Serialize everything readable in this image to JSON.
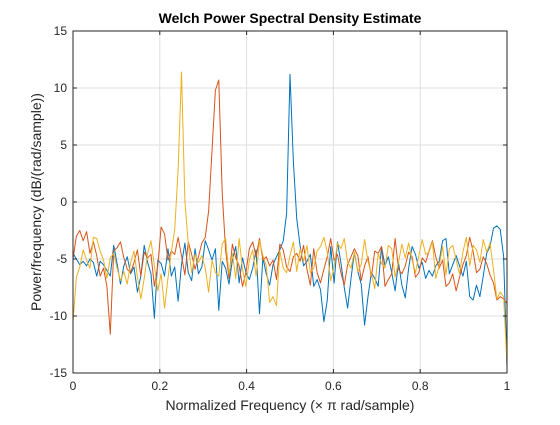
{
  "chart_data": {
    "type": "line",
    "title": "Welch Power Spectral Density Estimate",
    "xlabel": "Normalized  Frequency    (× π  rad/sample)",
    "ylabel": "Power/frequency (dB/(rad/sample))",
    "xlim": [
      0,
      1
    ],
    "ylim": [
      -15,
      15
    ],
    "xticks": [
      0,
      0.2,
      0.4,
      0.6,
      0.8,
      1
    ],
    "xtick_labels": [
      "0",
      "0.2",
      "0.4",
      "0.6",
      "0.8",
      "1"
    ],
    "yticks": [
      -15,
      -10,
      -5,
      0,
      5,
      10,
      15
    ],
    "ytick_labels": [
      "-15",
      "-10",
      "-5",
      "0",
      "5",
      "10",
      "15"
    ],
    "grid": true,
    "legend": false,
    "series": [
      {
        "color": "#0072BD",
        "x": [
          0,
          0.0078,
          0.0156,
          0.0234,
          0.0313,
          0.0391,
          0.0469,
          0.0547,
          0.0625,
          0.0703,
          0.0781,
          0.0859,
          0.0938,
          0.1016,
          0.1094,
          0.1172,
          0.125,
          0.1328,
          0.1406,
          0.1484,
          0.1563,
          0.1641,
          0.1719,
          0.1797,
          0.1875,
          0.1953,
          0.2031,
          0.2109,
          0.2188,
          0.2266,
          0.2344,
          0.2422,
          0.25,
          0.2578,
          0.2656,
          0.2734,
          0.2813,
          0.2891,
          0.2969,
          0.3047,
          0.3125,
          0.3203,
          0.3281,
          0.3359,
          0.3438,
          0.3516,
          0.3594,
          0.3672,
          0.375,
          0.3828,
          0.3906,
          0.3984,
          0.4063,
          0.4141,
          0.4219,
          0.4297,
          0.4375,
          0.4453,
          0.4531,
          0.4609,
          0.4688,
          0.4766,
          0.4844,
          0.4922,
          0.5,
          0.5078,
          0.5156,
          0.5234,
          0.5313,
          0.5391,
          0.5469,
          0.5547,
          0.5625,
          0.5703,
          0.5781,
          0.5859,
          0.5938,
          0.6016,
          0.6094,
          0.6172,
          0.625,
          0.6328,
          0.6406,
          0.6484,
          0.6563,
          0.6641,
          0.6719,
          0.6797,
          0.6875,
          0.6953,
          0.7031,
          0.7109,
          0.7188,
          0.7266,
          0.7344,
          0.7422,
          0.75,
          0.7578,
          0.7656,
          0.7734,
          0.7813,
          0.7891,
          0.7969,
          0.8047,
          0.8125,
          0.8203,
          0.8281,
          0.8359,
          0.8438,
          0.8516,
          0.8594,
          0.8672,
          0.875,
          0.8828,
          0.8906,
          0.8984,
          0.9063,
          0.9141,
          0.9219,
          0.9297,
          0.9375,
          0.9453,
          0.9531,
          0.9609,
          0.9688,
          0.9766,
          0.9844,
          0.9922,
          1
        ],
        "y": [
          -4.5,
          -5,
          -5.5,
          -5.2,
          -5.6,
          -5,
          -5.3,
          -6.5,
          -5.2,
          -5.5,
          -6,
          -6.5,
          -3.8,
          -5.4,
          -7.2,
          -5.6,
          -4.8,
          -6.3,
          -5.7,
          -7.9,
          -6.5,
          -3.8,
          -5.3,
          -6.3,
          -10.2,
          -5.1,
          -5.4,
          -6.5,
          -4.1,
          -6.5,
          -5.7,
          -8.7,
          -5.5,
          -3.6,
          -6.2,
          -6.9,
          -4.1,
          -6.3,
          -5.7,
          -3.4,
          -4.2,
          -5.1,
          -4.1,
          -9.5,
          -5.2,
          -5.8,
          -7.2,
          -5.1,
          -3.9,
          -7.1,
          -4.9,
          -6.2,
          -6.8,
          -5.8,
          -4.2,
          -9.8,
          -4.9,
          -6.3,
          -7.3,
          -5.5,
          -4.8,
          -4.2,
          -3.4,
          -1,
          11.2,
          3.5,
          -1.5,
          -3.9,
          -5.6,
          -5.2,
          -4.6,
          -7.4,
          -6.8,
          -7.7,
          -10.5,
          -8.6,
          -3.9,
          -7.1,
          -3.5,
          -5.3,
          -7.5,
          -9.3,
          -6.7,
          -4.4,
          -6.1,
          -7.2,
          -10.8,
          -8.3,
          -6.2,
          -6.7,
          -7.4,
          -3.9,
          -5.6,
          -4.8,
          -6.2,
          -7.8,
          -5.3,
          -7.3,
          -8.4,
          -5.8,
          -3.9,
          -4.6,
          -5.8,
          -5.3,
          -6.7,
          -6,
          -6.5,
          -5.6,
          -5.2,
          -3.4,
          -3.2,
          -6.3,
          -5.5,
          -4.7,
          -5.6,
          -6.5,
          -5.2,
          -8.3,
          -8.6,
          -7.3,
          -8.3,
          -6.5,
          -4.5,
          -3.9,
          -2.3,
          -2.1,
          -2.4,
          -4.8,
          -14.5
        ]
      },
      {
        "color": "#D95319",
        "x": [
          0,
          0.0078,
          0.0156,
          0.0234,
          0.0313,
          0.0391,
          0.0469,
          0.0547,
          0.0625,
          0.0703,
          0.0781,
          0.0859,
          0.0938,
          0.1016,
          0.1094,
          0.1172,
          0.125,
          0.1328,
          0.1406,
          0.1484,
          0.1563,
          0.1641,
          0.1719,
          0.1797,
          0.1875,
          0.1953,
          0.2031,
          0.2109,
          0.2188,
          0.2266,
          0.2344,
          0.2422,
          0.25,
          0.2578,
          0.2656,
          0.2734,
          0.2813,
          0.2891,
          0.2969,
          0.3047,
          0.3125,
          0.3203,
          0.3281,
          0.3359,
          0.3438,
          0.3516,
          0.3594,
          0.3672,
          0.375,
          0.3828,
          0.3906,
          0.3984,
          0.4063,
          0.4141,
          0.4219,
          0.4297,
          0.4375,
          0.4453,
          0.4531,
          0.4609,
          0.4688,
          0.4766,
          0.4844,
          0.4922,
          0.5,
          0.5078,
          0.5156,
          0.5234,
          0.5313,
          0.5391,
          0.5469,
          0.5547,
          0.5625,
          0.5703,
          0.5781,
          0.5859,
          0.5938,
          0.6016,
          0.6094,
          0.6172,
          0.625,
          0.6328,
          0.6406,
          0.6484,
          0.6563,
          0.6641,
          0.6719,
          0.6797,
          0.6875,
          0.6953,
          0.7031,
          0.7109,
          0.7188,
          0.7266,
          0.7344,
          0.7422,
          0.75,
          0.7578,
          0.7656,
          0.7734,
          0.7813,
          0.7891,
          0.7969,
          0.8047,
          0.8125,
          0.8203,
          0.8281,
          0.8359,
          0.8438,
          0.8516,
          0.8594,
          0.8672,
          0.875,
          0.8828,
          0.8906,
          0.8984,
          0.9063,
          0.9141,
          0.9219,
          0.9297,
          0.9375,
          0.9453,
          0.9531,
          0.9609,
          0.9688,
          0.9766,
          0.9844,
          0.9922,
          1
        ],
        "y": [
          -5,
          -3,
          -2.5,
          -3.4,
          -2.6,
          -4.5,
          -3.5,
          -4.7,
          -6.5,
          -5.8,
          -7.4,
          -11.6,
          -4.3,
          -4,
          -3.5,
          -4.9,
          -5.9,
          -6.2,
          -5.3,
          -4.2,
          -6.5,
          -4.4,
          -4.9,
          -4.6,
          -7.4,
          -5.6,
          -2.2,
          -2.8,
          -5.1,
          -4.3,
          -4.6,
          -3.1,
          -4.7,
          -6.4,
          -3.5,
          -4.6,
          -5.9,
          -4.8,
          -3.6,
          -3.1,
          -0.8,
          4.5,
          9.8,
          10.7,
          0.8,
          -4.2,
          -6.7,
          -3.7,
          -4.9,
          -5.6,
          -7.4,
          -6.2,
          -4.1,
          -3.5,
          -4.8,
          -3.2,
          -5.1,
          -4.8,
          -5.6,
          -5.1,
          -6.8,
          -3.7,
          -4.2,
          -5.7,
          -6.1,
          -4.8,
          -4.5,
          -5.2,
          -3.8,
          -5.9,
          -7.3,
          -4.1,
          -6.2,
          -7.1,
          -5.9,
          -4.8,
          -3.2,
          -5.1,
          -4.6,
          -6.2,
          -7.3,
          -5.5,
          -4.8,
          -4.1,
          -4.7,
          -6.9,
          -5.6,
          -4.8,
          -6.6,
          -4.3,
          -4.5,
          -3.9,
          -7.4,
          -6.8,
          -6.3,
          -3.2,
          -5.9,
          -6.3,
          -5.6,
          -4.4,
          -4.8,
          -6.6,
          -6.2,
          -4.9,
          -5.3,
          -4.3,
          -3.4,
          -4.8,
          -5.8,
          -5.1,
          -7.4,
          -7.1,
          -6.3,
          -7.8,
          -6.6,
          -5.5,
          -4.7,
          -3.1,
          -4.3,
          -6.2,
          -5.9,
          -4.8,
          -5.4,
          -6.4,
          -7.1,
          -8.6,
          -8.3,
          -8.5,
          -8.9
        ]
      },
      {
        "color": "#EDB120",
        "x": [
          0,
          0.0078,
          0.0156,
          0.0234,
          0.0313,
          0.0391,
          0.0469,
          0.0547,
          0.0625,
          0.0703,
          0.0781,
          0.0859,
          0.0938,
          0.1016,
          0.1094,
          0.1172,
          0.125,
          0.1328,
          0.1406,
          0.1484,
          0.1563,
          0.1641,
          0.1719,
          0.1797,
          0.1875,
          0.1953,
          0.2031,
          0.2109,
          0.2188,
          0.2266,
          0.2344,
          0.2422,
          0.25,
          0.2578,
          0.2656,
          0.2734,
          0.2813,
          0.2891,
          0.2969,
          0.3047,
          0.3125,
          0.3203,
          0.3281,
          0.3359,
          0.3438,
          0.3516,
          0.3594,
          0.3672,
          0.375,
          0.3828,
          0.3906,
          0.3984,
          0.4063,
          0.4141,
          0.4219,
          0.4297,
          0.4375,
          0.4453,
          0.4531,
          0.4609,
          0.4688,
          0.4766,
          0.4844,
          0.4922,
          0.5,
          0.5078,
          0.5156,
          0.5234,
          0.5313,
          0.5391,
          0.5469,
          0.5547,
          0.5625,
          0.5703,
          0.5781,
          0.5859,
          0.5938,
          0.6016,
          0.6094,
          0.6172,
          0.625,
          0.6328,
          0.6406,
          0.6484,
          0.6563,
          0.6641,
          0.6719,
          0.6797,
          0.6875,
          0.6953,
          0.7031,
          0.7109,
          0.7188,
          0.7266,
          0.7344,
          0.7422,
          0.75,
          0.7578,
          0.7656,
          0.7734,
          0.7813,
          0.7891,
          0.7969,
          0.8047,
          0.8125,
          0.8203,
          0.8281,
          0.8359,
          0.8438,
          0.8516,
          0.8594,
          0.8672,
          0.875,
          0.8828,
          0.8906,
          0.8984,
          0.9063,
          0.9141,
          0.9219,
          0.9297,
          0.9375,
          0.9453,
          0.9531,
          0.9609,
          0.9688,
          0.9766,
          0.9844,
          0.9922,
          1
        ],
        "y": [
          -10.5,
          -6.6,
          -5.7,
          -4.2,
          -5.1,
          -5.8,
          -3.1,
          -3.2,
          -4.3,
          -5.1,
          -6.7,
          -4.9,
          -4.5,
          -5.8,
          -6.9,
          -6.1,
          -7.2,
          -5.3,
          -4.3,
          -6.6,
          -8.5,
          -6.7,
          -4.5,
          -3.4,
          -5.6,
          -7.8,
          -6.3,
          -9.3,
          -6.7,
          -4.4,
          -2.4,
          2.8,
          11.4,
          0.1,
          -3.7,
          -6.2,
          -4.6,
          -5.3,
          -4.7,
          -5.8,
          -7.9,
          -5.1,
          -6.2,
          -6.5,
          -3.7,
          -3.2,
          -6.3,
          -4.5,
          -6.7,
          -3.2,
          -5.9,
          -7.4,
          -5.1,
          -4.2,
          -6.5,
          -3.4,
          -4.7,
          -5.6,
          -8.8,
          -8.3,
          -9.1,
          -4.3,
          -5.8,
          -6.2,
          -4.7,
          -3.5,
          -6.1,
          -4.1,
          -5.2,
          -3.8,
          -6.2,
          -5.8,
          -4.3,
          -3.9,
          -3.1,
          -4.4,
          -6.9,
          -5.7,
          -3.6,
          -4.1,
          -3.2,
          -5.3,
          -5.8,
          -4.4,
          -6.1,
          -5.5,
          -3.3,
          -5.2,
          -6.3,
          -7.6,
          -4.5,
          -5.4,
          -5.8,
          -3.8,
          -4.1,
          -6.6,
          -5.3,
          -3.7,
          -4.9,
          -3.6,
          -5.1,
          -6.2,
          -4.7,
          -3.3,
          -4.6,
          -4.4,
          -3.5,
          -6.7,
          -5.6,
          -3.9,
          -6.4,
          -4.1,
          -3.8,
          -5.1,
          -6.3,
          -4.4,
          -3.1,
          -5.6,
          -3.8,
          -4.2,
          -5.3,
          -3.3,
          -4.4,
          -3.6,
          -5.9,
          -8.5,
          -7.9,
          -8.3,
          -14.2
        ]
      }
    ]
  }
}
